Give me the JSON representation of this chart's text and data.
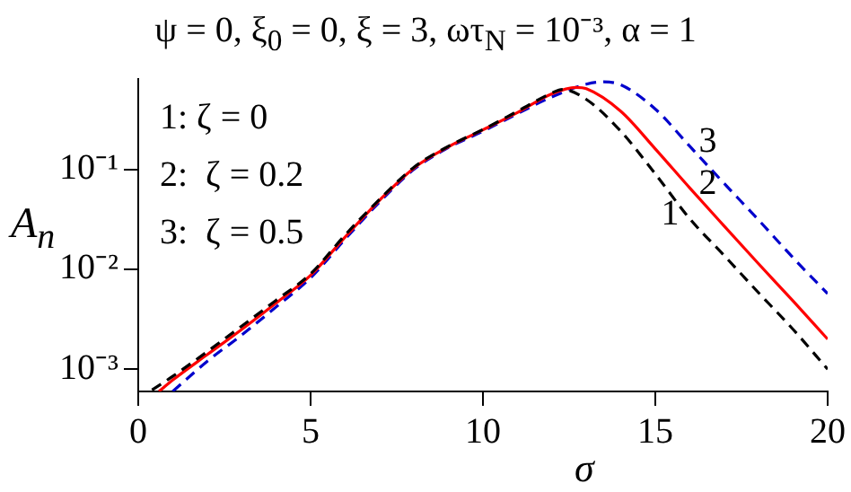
{
  "chart_data": {
    "type": "line",
    "title": "ψ = 0, ξ$_{0}$ = 0, ξ = 3, ωτ$_{N}$ = 10⁻³, α = 1",
    "xlabel": "σ",
    "ylabel": "A$_{n}$",
    "log": "y",
    "grid": false,
    "legend": false,
    "marker": "none",
    "xlim": [
      0,
      20
    ],
    "xticks": [
      0,
      5,
      10,
      15,
      20
    ],
    "ylim": [
      0.0006,
      0.8
    ],
    "yticks": [
      {
        "value": 0.001,
        "label": "10⁻³"
      },
      {
        "value": 0.01,
        "label": "10⁻²"
      },
      {
        "value": 0.1,
        "label": "10⁻¹"
      }
    ],
    "annotations": [
      "1: ζ = 0",
      "2:  ζ = 0.2",
      "3:  ζ = 0.5"
    ],
    "series": [
      {
        "name": "1",
        "color": "#000000",
        "line_style": "dashed",
        "x": [
          0.4,
          1,
          2,
          3,
          4,
          5,
          6,
          7,
          8,
          9,
          10,
          11,
          12,
          12.3,
          13,
          14,
          15,
          16,
          17,
          18,
          19,
          20
        ],
        "values": [
          0.00062,
          0.00085,
          0.0015,
          0.0027,
          0.0049,
          0.009,
          0.022,
          0.05,
          0.105,
          0.17,
          0.25,
          0.38,
          0.58,
          0.63,
          0.5,
          0.24,
          0.09,
          0.032,
          0.0137,
          0.0058,
          0.0025,
          0.001
        ]
      },
      {
        "name": "2",
        "color": "#ff0000",
        "line_style": "solid",
        "x": [
          0.6,
          1,
          2,
          3,
          4,
          5,
          6,
          7,
          8,
          9,
          10,
          11,
          12,
          12.7,
          13,
          14,
          15,
          16,
          17,
          18,
          19,
          20
        ],
        "values": [
          0.0006,
          0.00078,
          0.0014,
          0.0025,
          0.0046,
          0.0087,
          0.021,
          0.049,
          0.103,
          0.168,
          0.248,
          0.37,
          0.57,
          0.66,
          0.64,
          0.38,
          0.16,
          0.065,
          0.027,
          0.0113,
          0.0048,
          0.002
        ]
      },
      {
        "name": "3",
        "color": "#0000cc",
        "line_style": "dashed",
        "x": [
          1,
          2,
          3,
          4,
          5,
          6,
          7,
          8,
          9,
          10,
          11,
          12,
          13,
          13.5,
          14,
          15,
          16,
          17,
          18,
          19,
          20
        ],
        "values": [
          0.0006,
          0.0012,
          0.0022,
          0.0042,
          0.0082,
          0.02,
          0.047,
          0.1,
          0.165,
          0.24,
          0.36,
          0.53,
          0.71,
          0.75,
          0.7,
          0.4,
          0.17,
          0.072,
          0.031,
          0.013,
          0.0057
        ]
      }
    ]
  }
}
